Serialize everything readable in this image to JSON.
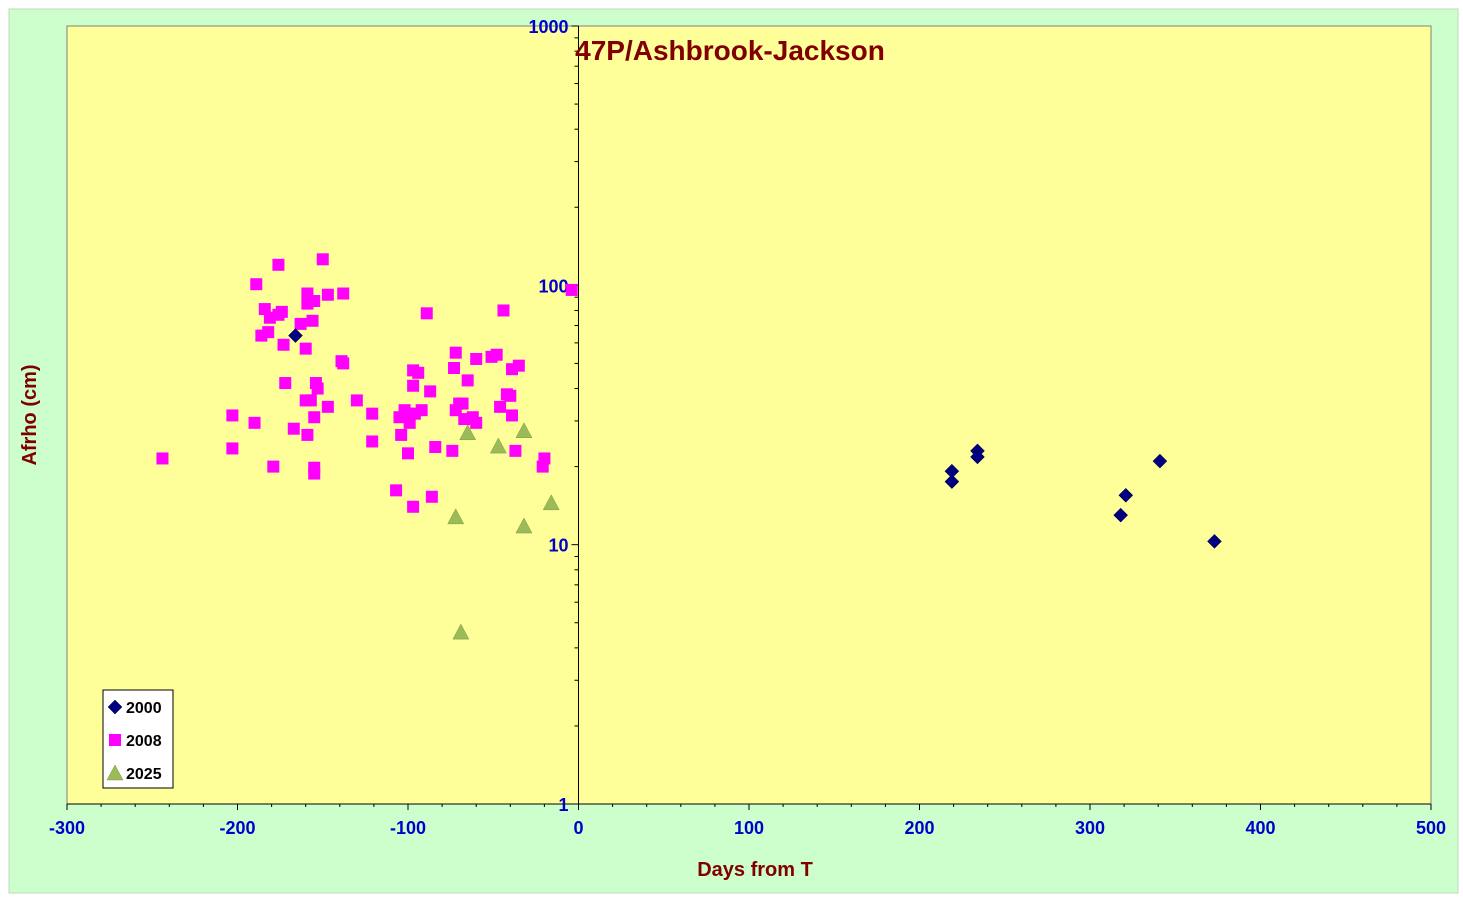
{
  "chart_data": {
    "type": "scatter",
    "title": "47P/Ashbrook-Jackson",
    "xlabel": "Days from  T",
    "ylabel": "Afrho (cm)",
    "xlim": [
      -300,
      500
    ],
    "ylim": [
      1,
      1000
    ],
    "yscale": "log",
    "x_ticks": [
      "-300",
      "-200",
      "-100",
      "0",
      "100",
      "200",
      "300",
      "400",
      "500"
    ],
    "y_ticks": [
      "1",
      "10",
      "100",
      "1000"
    ],
    "grid": false,
    "legend_position": "bottom-left",
    "colors": {
      "outer_background": "#ccffcc",
      "plot_background": "#ffff99",
      "title": "#800000",
      "axis_title": "#800000",
      "tick_label": "#0000cc"
    },
    "series": [
      {
        "name": "2000",
        "marker": "diamond",
        "color": "#000080",
        "points": [
          [
            -166,
            64
          ],
          [
            219,
            19.2
          ],
          [
            219,
            17.5
          ],
          [
            234,
            23
          ],
          [
            234,
            21.8
          ],
          [
            318,
            13
          ],
          [
            321,
            15.5
          ],
          [
            341,
            21
          ],
          [
            373,
            10.3
          ]
        ]
      },
      {
        "name": "2008",
        "marker": "square",
        "color": "#ff00ff",
        "points": [
          [
            -244,
            21.5
          ],
          [
            -203,
            31.5
          ],
          [
            -203,
            23.5
          ],
          [
            -189,
            101
          ],
          [
            -190,
            29.5
          ],
          [
            -186,
            64
          ],
          [
            -184,
            81
          ],
          [
            -182,
            66
          ],
          [
            -181,
            75
          ],
          [
            -179,
            20
          ],
          [
            -176,
            120
          ],
          [
            -176,
            77
          ],
          [
            -174,
            79
          ],
          [
            -173,
            59
          ],
          [
            -172,
            42
          ],
          [
            -167,
            28
          ],
          [
            -163,
            71
          ],
          [
            -160,
            57
          ],
          [
            -160,
            36
          ],
          [
            -159,
            26.5
          ],
          [
            -159,
            93
          ],
          [
            -159,
            85
          ],
          [
            -157,
            36
          ],
          [
            -156,
            73
          ],
          [
            -155,
            87
          ],
          [
            -155,
            19.8
          ],
          [
            -155,
            18.8
          ],
          [
            -155,
            31
          ],
          [
            -154,
            42
          ],
          [
            -153,
            40
          ],
          [
            -150,
            126
          ],
          [
            -147,
            92
          ],
          [
            -147,
            34
          ],
          [
            -138,
            93
          ],
          [
            -139,
            51
          ],
          [
            -138,
            50
          ],
          [
            -130,
            36
          ],
          [
            -121,
            32
          ],
          [
            -121,
            25
          ],
          [
            -107,
            16.2
          ],
          [
            -105,
            31
          ],
          [
            -104,
            26.5
          ],
          [
            -102,
            33
          ],
          [
            -100,
            32
          ],
          [
            -100,
            22.5
          ],
          [
            -99,
            29.5
          ],
          [
            -97,
            47
          ],
          [
            -97,
            41
          ],
          [
            -97,
            14
          ],
          [
            -96,
            32
          ],
          [
            -94,
            46
          ],
          [
            -92,
            33
          ],
          [
            -89,
            78
          ],
          [
            -87,
            39
          ],
          [
            -86,
            15.3
          ],
          [
            -84,
            23.8
          ],
          [
            -74,
            23
          ],
          [
            -73,
            48
          ],
          [
            -72,
            55
          ],
          [
            -72,
            33
          ],
          [
            -70,
            35
          ],
          [
            -68,
            35
          ],
          [
            -67,
            30.5
          ],
          [
            -65,
            43
          ],
          [
            -62,
            31
          ],
          [
            -60,
            52
          ],
          [
            -60,
            29.5
          ],
          [
            -51,
            53
          ],
          [
            -48,
            54
          ],
          [
            -46,
            34
          ],
          [
            -44,
            80
          ],
          [
            -42,
            38
          ],
          [
            -40,
            37.5
          ],
          [
            -39,
            47.5
          ],
          [
            -39,
            31.5
          ],
          [
            -37,
            23
          ],
          [
            -35,
            49
          ],
          [
            -21,
            20
          ],
          [
            -20,
            21.5
          ],
          [
            -4,
            96
          ]
        ]
      },
      {
        "name": "2025",
        "marker": "triangle",
        "color": "#9bbb59",
        "points": [
          [
            -72,
            12.8
          ],
          [
            -69,
            4.6
          ],
          [
            -65,
            27
          ],
          [
            -47,
            24
          ],
          [
            -32,
            27.5
          ],
          [
            -32,
            11.8
          ],
          [
            -16,
            14.5
          ]
        ]
      }
    ]
  }
}
